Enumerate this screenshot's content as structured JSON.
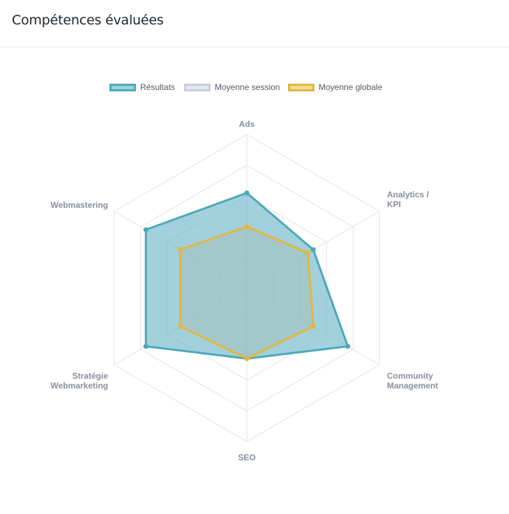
{
  "header": {
    "title": "Compétences évaluées"
  },
  "legend": {
    "items": [
      {
        "label": "Résultats",
        "fill": "#9ecfdb",
        "border": "#4aa9b8"
      },
      {
        "label": "Moyenne session",
        "fill": "#e4e7f0",
        "border": "#c9cedd"
      },
      {
        "label": "Moyenne globale",
        "fill": "#f3d99a",
        "border": "#e3b73e"
      }
    ]
  },
  "chart_data": {
    "type": "radar",
    "title": "",
    "axes": [
      "Ads",
      "Analytics / KPI",
      "Community Management",
      "SEO",
      "Stratégie Webmarketing",
      "Webmastering"
    ],
    "axis_label_lines": [
      [
        "Ads"
      ],
      [
        "Analytics /",
        "KPI"
      ],
      [
        "Community",
        "Management"
      ],
      [
        "SEO"
      ],
      [
        "Stratégie",
        "Webmarketing"
      ],
      [
        "Webmastering"
      ]
    ],
    "scale": {
      "min": 0,
      "max": 5,
      "steps": 5
    },
    "grid": true,
    "legend_position": "top",
    "series": [
      {
        "name": "Résultats",
        "values": [
          3.1,
          2.5,
          3.8,
          2.3,
          3.8,
          3.8
        ],
        "line_color": "#4aa9b8",
        "fill_color": "#7bbccd",
        "fill_opacity": 0.7
      },
      {
        "name": "Moyenne session",
        "values": [],
        "line_color": "#c9cedd",
        "fill_color": "#e4e7f0",
        "fill_opacity": 0.5
      },
      {
        "name": "Moyenne globale",
        "values": [
          2.0,
          2.3,
          2.5,
          2.3,
          2.5,
          2.5
        ],
        "line_color": "#e3b73e",
        "fill_color": "#a9b8a6",
        "fill_opacity": 0.35
      }
    ]
  }
}
